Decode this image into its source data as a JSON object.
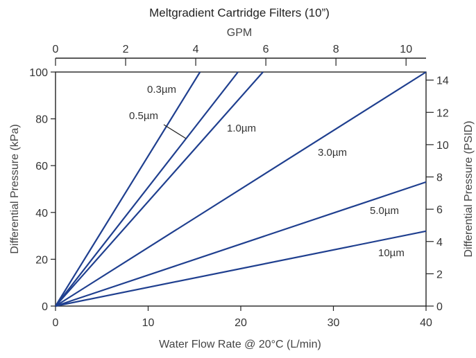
{
  "chart_data": {
    "type": "line",
    "title": "Meltgradient Cartridge Filters (10”)",
    "xlabel": "Water Flow Rate @ 20°C (L/min)",
    "ylabel": "Differential Pressure (kPa)",
    "x2label": "GPM",
    "y2label": "Differential Pressure (PSID)",
    "xlim": [
      0,
      40
    ],
    "ylim": [
      0,
      100
    ],
    "x2lim": [
      0,
      10.57
    ],
    "y2lim": [
      0,
      14.5
    ],
    "xticks": [
      "0",
      "10",
      "20",
      "30",
      "40"
    ],
    "yticks": [
      "0",
      "20",
      "40",
      "60",
      "80",
      "100"
    ],
    "x2ticks": [
      "0",
      "2",
      "4",
      "6",
      "8",
      "10"
    ],
    "y2ticks": [
      "0",
      "2",
      "4",
      "6",
      "8",
      "10",
      "12",
      "14"
    ],
    "grid": false,
    "line_color": "#1f3f8f",
    "series": [
      {
        "name": "0.3µm",
        "x": [
          0,
          15.6
        ],
        "y": [
          0,
          100
        ]
      },
      {
        "name": "0.5µm",
        "x": [
          0,
          19.7
        ],
        "y": [
          0,
          100
        ]
      },
      {
        "name": "1.0µm",
        "x": [
          0,
          22.4
        ],
        "y": [
          0,
          100
        ]
      },
      {
        "name": "3.0µm",
        "x": [
          0,
          40
        ],
        "y": [
          0,
          100
        ]
      },
      {
        "name": "5.0µm",
        "x": [
          0,
          40
        ],
        "y": [
          0,
          53
        ]
      },
      {
        "name": "10µm",
        "x": [
          0,
          40
        ],
        "y": [
          0,
          32
        ]
      }
    ]
  }
}
